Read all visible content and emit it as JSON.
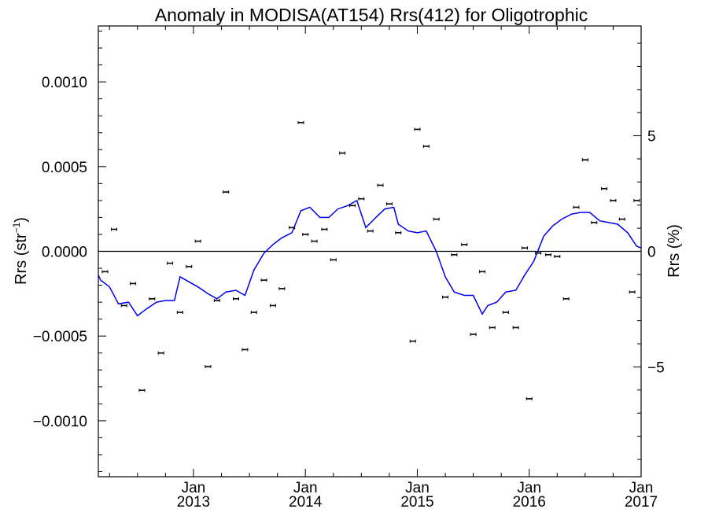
{
  "chart_data": {
    "type": "scatter",
    "title": "Anomaly in MODISA(AT154) Rrs(412) for Oligotrophic",
    "ylabel_left": "Rrs (str",
    "ylabel_left_sup": "−1",
    "ylabel_left_close": ")",
    "ylabel_right": "Rrs (%)",
    "ylim_left": [
      -0.00133,
      0.00133
    ],
    "ylim_right": [
      -9.75,
      9.75
    ],
    "xlim": [
      2012.15,
      2017.0
    ],
    "left_ticks": [
      {
        "value": 0.001,
        "label": "0.0010"
      },
      {
        "value": 0.0005,
        "label": "0.0005"
      },
      {
        "value": 0.0,
        "label": "0.0000"
      },
      {
        "value": -0.0005,
        "label": "−0.0005"
      },
      {
        "value": -0.001,
        "label": "−0.0010"
      }
    ],
    "right_ticks": [
      {
        "value": 5,
        "label": "5"
      },
      {
        "value": 0,
        "label": "0"
      },
      {
        "value": -5,
        "label": "−5"
      }
    ],
    "x_ticks": [
      {
        "value": 2013.0,
        "month": "Jan",
        "year": "2013"
      },
      {
        "value": 2014.0,
        "month": "Jan",
        "year": "2014"
      },
      {
        "value": 2015.0,
        "month": "Jan",
        "year": "2015"
      },
      {
        "value": 2016.0,
        "month": "Jan",
        "year": "2016"
      },
      {
        "value": 2017.0,
        "month": "Jan",
        "year": "2017"
      }
    ],
    "zero_line": true,
    "colors": {
      "points": "#000000",
      "line": "#0000ee",
      "axes": "#000000"
    },
    "points": [
      {
        "x": 2012.13,
        "y": 0.0001
      },
      {
        "x": 2012.21,
        "y": -0.00012
      },
      {
        "x": 2012.29,
        "y": 0.00013
      },
      {
        "x": 2012.38,
        "y": -0.00032
      },
      {
        "x": 2012.46,
        "y": -0.00019
      },
      {
        "x": 2012.54,
        "y": -0.00082
      },
      {
        "x": 2012.63,
        "y": -0.00028
      },
      {
        "x": 2012.71,
        "y": -0.0006
      },
      {
        "x": 2012.79,
        "y": -7e-05
      },
      {
        "x": 2012.88,
        "y": -0.00036
      },
      {
        "x": 2012.96,
        "y": -9e-05
      },
      {
        "x": 2013.04,
        "y": 6e-05
      },
      {
        "x": 2013.13,
        "y": -0.00068
      },
      {
        "x": 2013.21,
        "y": -0.00029
      },
      {
        "x": 2013.29,
        "y": 0.00035
      },
      {
        "x": 2013.38,
        "y": -0.00028
      },
      {
        "x": 2013.46,
        "y": -0.00058
      },
      {
        "x": 2013.54,
        "y": -0.00036
      },
      {
        "x": 2013.63,
        "y": -0.00017
      },
      {
        "x": 2013.71,
        "y": -0.00032
      },
      {
        "x": 2013.79,
        "y": -0.00022
      },
      {
        "x": 2013.88,
        "y": 0.00014
      },
      {
        "x": 2013.96,
        "y": 0.00076
      },
      {
        "x": 2014.0,
        "y": 0.0001
      },
      {
        "x": 2014.08,
        "y": 6e-05
      },
      {
        "x": 2014.17,
        "y": 0.00013
      },
      {
        "x": 2014.25,
        "y": -5e-05
      },
      {
        "x": 2014.33,
        "y": 0.00058
      },
      {
        "x": 2014.42,
        "y": 0.00027
      },
      {
        "x": 2014.5,
        "y": 0.00031
      },
      {
        "x": 2014.58,
        "y": 0.00012
      },
      {
        "x": 2014.67,
        "y": 0.00039
      },
      {
        "x": 2014.75,
        "y": 0.00028
      },
      {
        "x": 2014.83,
        "y": 0.00011
      },
      {
        "x": 2014.96,
        "y": -0.00053
      },
      {
        "x": 2015.0,
        "y": 0.00072
      },
      {
        "x": 2015.08,
        "y": 0.00062
      },
      {
        "x": 2015.17,
        "y": 0.00019
      },
      {
        "x": 2015.25,
        "y": -0.00027
      },
      {
        "x": 2015.33,
        "y": -2e-05
      },
      {
        "x": 2015.42,
        "y": 4e-05
      },
      {
        "x": 2015.5,
        "y": -0.00049
      },
      {
        "x": 2015.58,
        "y": -0.00012
      },
      {
        "x": 2015.67,
        "y": -0.00045
      },
      {
        "x": 2015.79,
        "y": -0.00036
      },
      {
        "x": 2015.88,
        "y": -0.00045
      },
      {
        "x": 2015.96,
        "y": 2e-05
      },
      {
        "x": 2016.0,
        "y": -0.00087
      },
      {
        "x": 2016.08,
        "y": -1e-05
      },
      {
        "x": 2016.17,
        "y": -2e-05
      },
      {
        "x": 2016.25,
        "y": -3e-05
      },
      {
        "x": 2016.33,
        "y": -0.00028
      },
      {
        "x": 2016.42,
        "y": 0.00026
      },
      {
        "x": 2016.5,
        "y": 0.00054
      },
      {
        "x": 2016.58,
        "y": 0.00017
      },
      {
        "x": 2016.67,
        "y": 0.00037
      },
      {
        "x": 2016.75,
        "y": 0.0003
      },
      {
        "x": 2016.83,
        "y": 0.00019
      },
      {
        "x": 2016.92,
        "y": -0.00024
      },
      {
        "x": 2016.96,
        "y": 0.0003
      }
    ],
    "line": [
      {
        "x": 2012.0,
        "y": 0.0
      },
      {
        "x": 2012.08,
        "y": -3e-05
      },
      {
        "x": 2012.17,
        "y": -0.00017
      },
      {
        "x": 2012.25,
        "y": -0.00021
      },
      {
        "x": 2012.33,
        "y": -0.00031
      },
      {
        "x": 2012.42,
        "y": -0.0003
      },
      {
        "x": 2012.5,
        "y": -0.00038
      },
      {
        "x": 2012.58,
        "y": -0.00034
      },
      {
        "x": 2012.67,
        "y": -0.0003
      },
      {
        "x": 2012.75,
        "y": -0.00029
      },
      {
        "x": 2012.83,
        "y": -0.00029
      },
      {
        "x": 2012.88,
        "y": -0.00015
      },
      {
        "x": 2012.96,
        "y": -0.00018
      },
      {
        "x": 2013.04,
        "y": -0.00021
      },
      {
        "x": 2013.13,
        "y": -0.00025
      },
      {
        "x": 2013.21,
        "y": -0.00028
      },
      {
        "x": 2013.29,
        "y": -0.00024
      },
      {
        "x": 2013.38,
        "y": -0.00023
      },
      {
        "x": 2013.46,
        "y": -0.00026
      },
      {
        "x": 2013.54,
        "y": -0.00011
      },
      {
        "x": 2013.63,
        "y": -1e-05
      },
      {
        "x": 2013.71,
        "y": 4e-05
      },
      {
        "x": 2013.79,
        "y": 8e-05
      },
      {
        "x": 2013.88,
        "y": 0.00011
      },
      {
        "x": 2013.96,
        "y": 0.00024
      },
      {
        "x": 2014.04,
        "y": 0.00026
      },
      {
        "x": 2014.13,
        "y": 0.0002
      },
      {
        "x": 2014.21,
        "y": 0.0002
      },
      {
        "x": 2014.29,
        "y": 0.00025
      },
      {
        "x": 2014.38,
        "y": 0.00027
      },
      {
        "x": 2014.46,
        "y": 0.0003
      },
      {
        "x": 2014.54,
        "y": 0.00014
      },
      {
        "x": 2014.63,
        "y": 0.0002
      },
      {
        "x": 2014.71,
        "y": 0.00025
      },
      {
        "x": 2014.79,
        "y": 0.00026
      },
      {
        "x": 2014.83,
        "y": 0.00016
      },
      {
        "x": 2014.92,
        "y": 0.00012
      },
      {
        "x": 2015.0,
        "y": 0.00011
      },
      {
        "x": 2015.08,
        "y": 0.00012
      },
      {
        "x": 2015.17,
        "y": 0.0
      },
      {
        "x": 2015.25,
        "y": -0.00015
      },
      {
        "x": 2015.33,
        "y": -0.00024
      },
      {
        "x": 2015.42,
        "y": -0.00026
      },
      {
        "x": 2015.5,
        "y": -0.00026
      },
      {
        "x": 2015.58,
        "y": -0.00037
      },
      {
        "x": 2015.63,
        "y": -0.00032
      },
      {
        "x": 2015.71,
        "y": -0.0003
      },
      {
        "x": 2015.79,
        "y": -0.00024
      },
      {
        "x": 2015.88,
        "y": -0.00023
      },
      {
        "x": 2015.96,
        "y": -0.00014
      },
      {
        "x": 2016.04,
        "y": -6e-05
      },
      {
        "x": 2016.13,
        "y": 9e-05
      },
      {
        "x": 2016.21,
        "y": 0.00015
      },
      {
        "x": 2016.29,
        "y": 0.00019
      },
      {
        "x": 2016.38,
        "y": 0.00022
      },
      {
        "x": 2016.46,
        "y": 0.00023
      },
      {
        "x": 2016.54,
        "y": 0.00023
      },
      {
        "x": 2016.63,
        "y": 0.00018
      },
      {
        "x": 2016.71,
        "y": 0.00017
      },
      {
        "x": 2016.79,
        "y": 0.00016
      },
      {
        "x": 2016.88,
        "y": 0.00011
      },
      {
        "x": 2016.96,
        "y": 3e-05
      },
      {
        "x": 2017.0,
        "y": 2e-05
      }
    ]
  }
}
